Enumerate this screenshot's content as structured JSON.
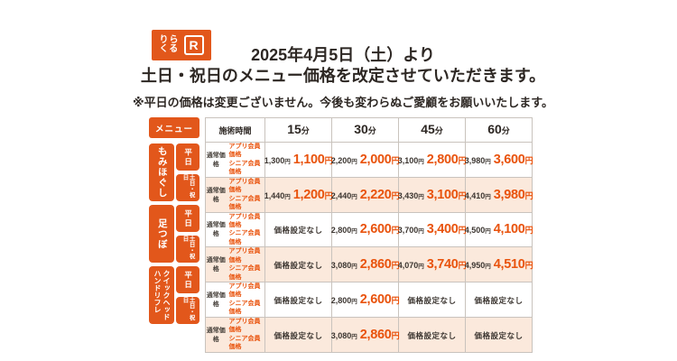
{
  "logo": {
    "brand_line1": "りら",
    "brand_line2": "くる",
    "mark": "R"
  },
  "header": {
    "title_line1": "2025年4月5日（土）より",
    "title_line2": "土日・祝日のメニュー価格を改定させていただきます。",
    "note": "※平日の価格は変更ございません。今後も変わらぬご愛顧をお願いいたします。"
  },
  "table": {
    "menu_label": "メニュー",
    "time_header": "施術時間",
    "minute_unit": "分",
    "yen": "円",
    "columns": [
      "15",
      "30",
      "45",
      "60"
    ],
    "price_labels": {
      "normal": "通常価格",
      "member": [
        "アプリ会員価格",
        "シニア会員価格"
      ]
    },
    "no_price_label": "価格設定なし",
    "sections": [
      {
        "name": "もみほぐし",
        "name_lines": [
          "もみほぐし"
        ],
        "rows": [
          {
            "day": "平日",
            "type": "weekday",
            "prices": [
              {
                "normal": "1,300",
                "member": "1,100"
              },
              {
                "normal": "2,200",
                "member": "2,000"
              },
              {
                "normal": "3,100",
                "member": "2,800"
              },
              {
                "normal": "3,980",
                "member": "3,600"
              }
            ]
          },
          {
            "day": "土日・祝日",
            "type": "weekend",
            "prices": [
              {
                "normal": "1,440",
                "member": "1,200"
              },
              {
                "normal": "2,440",
                "member": "2,220"
              },
              {
                "normal": "3,430",
                "member": "3,100"
              },
              {
                "normal": "4,410",
                "member": "3,980"
              }
            ]
          }
        ]
      },
      {
        "name": "足つぼ",
        "name_lines": [
          "足つぼ"
        ],
        "rows": [
          {
            "day": "平日",
            "type": "weekday",
            "prices": [
              {
                "no_price": true
              },
              {
                "normal": "2,800",
                "member": "2,600"
              },
              {
                "normal": "3,700",
                "member": "3,400"
              },
              {
                "normal": "4,500",
                "member": "4,100"
              }
            ]
          },
          {
            "day": "土日・祝日",
            "type": "weekend",
            "prices": [
              {
                "no_price": true
              },
              {
                "normal": "3,080",
                "member": "2,860"
              },
              {
                "normal": "4,070",
                "member": "3,740"
              },
              {
                "normal": "4,950",
                "member": "4,510"
              }
            ]
          }
        ]
      },
      {
        "name": "ハンドリフレ・クイックヘッド",
        "name_lines": [
          "ハンドリフレ",
          "クイックヘッド"
        ],
        "rows": [
          {
            "day": "平日",
            "type": "weekday",
            "prices": [
              {
                "no_price": true
              },
              {
                "normal": "2,800",
                "member": "2,600"
              },
              {
                "no_price": true
              },
              {
                "no_price": true
              }
            ]
          },
          {
            "day": "土日・祝日",
            "type": "weekend",
            "prices": [
              {
                "no_price": true
              },
              {
                "normal": "3,080",
                "member": "2,860"
              },
              {
                "no_price": true
              },
              {
                "no_price": true
              }
            ]
          }
        ]
      }
    ]
  },
  "colors": {
    "accent": "#e2571b",
    "weekend_bg": "#fbe9dc",
    "price_orange": "#e9530d",
    "text_dark": "#342e29"
  }
}
